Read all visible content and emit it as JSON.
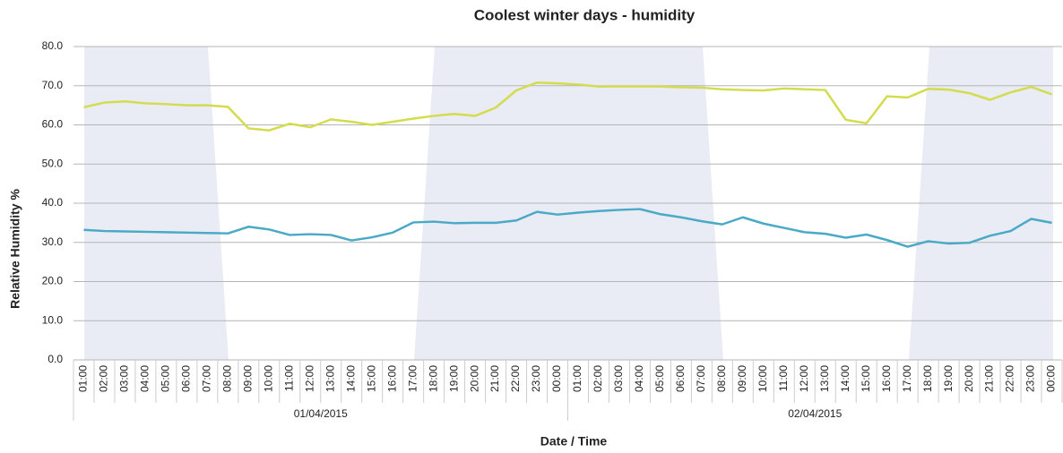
{
  "chart_data": {
    "type": "line",
    "title": "Coolest winter days - humidity",
    "x_label": "Date / Time",
    "y_label": "Relative Humidity %",
    "categories": [
      "01:00",
      "02:00",
      "03:00",
      "04:00",
      "05:00",
      "06:00",
      "07:00",
      "08:00",
      "09:00",
      "10:00",
      "11:00",
      "12:00",
      "13:00",
      "14:00",
      "15:00",
      "16:00",
      "17:00",
      "18:00",
      "19:00",
      "20:00",
      "21:00",
      "22:00",
      "23:00",
      "00:00",
      "01:00",
      "02:00",
      "03:00",
      "04:00",
      "05:00",
      "06:00",
      "07:00",
      "08:00",
      "09:00",
      "10:00",
      "11:00",
      "12:00",
      "13:00",
      "14:00",
      "15:00",
      "16:00",
      "17:00",
      "18:00",
      "19:00",
      "20:00",
      "21:00",
      "22:00",
      "23:00",
      "00:00"
    ],
    "category_groups": [
      "01/04/2015",
      "02/04/2015"
    ],
    "series": [
      {
        "color": "#d3dc4c",
        "values": [
          64.5,
          65.7,
          66.0,
          65.5,
          65.3,
          65.0,
          65.0,
          64.6,
          59.1,
          58.6,
          60.3,
          59.4,
          61.4,
          60.8,
          60.0,
          60.8,
          61.6,
          62.3,
          62.8,
          62.3,
          64.4,
          68.8,
          70.8,
          70.6,
          70.3,
          69.8,
          69.8,
          69.8,
          69.8,
          69.6,
          69.5,
          69.1,
          68.9,
          68.8,
          69.3,
          69.1,
          68.9,
          61.3,
          60.4,
          67.3,
          67.0,
          69.2,
          69.0,
          68.1,
          66.4,
          68.3,
          69.7,
          67.8
        ]
      },
      {
        "color": "#4aa9c6",
        "values": [
          33.2,
          32.9,
          32.8,
          32.7,
          32.6,
          32.5,
          32.4,
          32.3,
          34.0,
          33.3,
          31.9,
          32.1,
          31.9,
          30.5,
          31.3,
          32.5,
          35.1,
          35.3,
          34.9,
          35.0,
          35.0,
          35.6,
          37.8,
          37.1,
          37.6,
          38.0,
          38.3,
          38.5,
          37.2,
          36.4,
          35.4,
          34.6,
          36.4,
          34.8,
          33.7,
          32.6,
          32.2,
          31.2,
          32.0,
          30.6,
          28.9,
          30.3,
          29.7,
          29.9,
          31.7,
          32.9,
          36.0,
          35.0
        ]
      }
    ],
    "ylim": [
      0,
      80
    ],
    "yticks": [
      {
        "value": 0,
        "label": "0.0"
      },
      {
        "value": 10,
        "label": "10.0"
      },
      {
        "value": 20,
        "label": "20.0"
      },
      {
        "value": 30,
        "label": "30.0"
      },
      {
        "value": 40,
        "label": "40.0"
      },
      {
        "value": 50,
        "label": "50.0"
      },
      {
        "value": 60,
        "label": "60.0"
      },
      {
        "value": 70,
        "label": "70.0"
      },
      {
        "value": 80,
        "label": "80.0"
      }
    ],
    "grid": true
  }
}
